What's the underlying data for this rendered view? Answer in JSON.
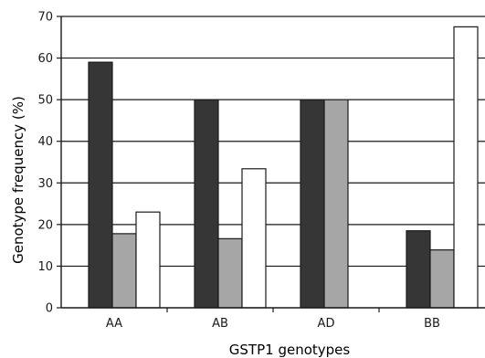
{
  "chart_data": {
    "type": "bar",
    "title": "",
    "xlabel": "GSTP1 genotypes",
    "ylabel": "Genotype frequency (%)",
    "categories": [
      "AA",
      "AB",
      "AD",
      "BB"
    ],
    "ylim": [
      0,
      70
    ],
    "yticks": [
      0,
      10,
      20,
      30,
      40,
      50,
      60,
      70
    ],
    "grid": true,
    "legend": "none",
    "series": [
      {
        "values": [
          59,
          50,
          50,
          18.5
        ],
        "color": "#363636"
      },
      {
        "values": [
          17.8,
          16.6,
          50,
          13.9
        ],
        "color": "#a6a6a6"
      },
      {
        "values": [
          23,
          33.4,
          0,
          67.5
        ],
        "color": "#ffffff"
      }
    ]
  }
}
